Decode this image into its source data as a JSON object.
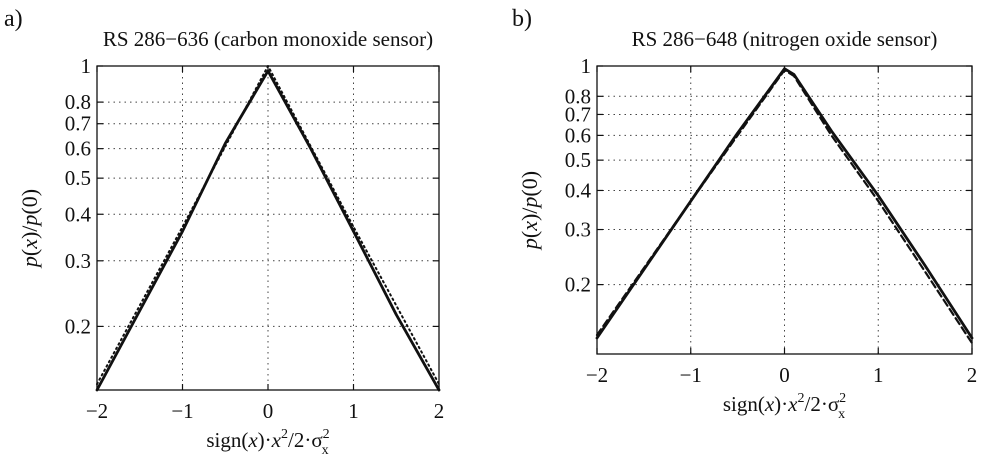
{
  "figure": {
    "panels": [
      {
        "letter": "a)"
      },
      {
        "letter": "b)"
      }
    ]
  },
  "chart_data": [
    {
      "type": "line",
      "title": "RS 286−636 (carbon monoxide sensor)",
      "xlabel_parts": [
        "sign(",
        "x",
        ")·",
        "x",
        "2",
        "/2·σ",
        "2",
        "x"
      ],
      "ylabel_parts": [
        "p",
        "(",
        "x",
        ")/",
        "p",
        "(0)"
      ],
      "xlim": [
        -2,
        2
      ],
      "ylim": [
        0.135,
        1.0
      ],
      "yscale": "log",
      "grid": true,
      "xticks": [
        -2,
        -1,
        0,
        1,
        2
      ],
      "xtick_labels": [
        "−2",
        "−1",
        "0",
        "1",
        "2"
      ],
      "yticks": [
        0.2,
        0.3,
        0.4,
        0.5,
        0.6,
        0.7,
        0.8,
        1
      ],
      "ytick_labels": [
        "0.2",
        "0.3",
        "0.4",
        "0.5",
        "0.6",
        "0.7",
        "0.8",
        "1"
      ],
      "series": [
        {
          "style": "solid",
          "x": [
            -2,
            -1,
            -0.5,
            0,
            0.5,
            1,
            1.5,
            2
          ],
          "y": [
            0.135,
            0.36,
            0.62,
            0.97,
            0.6,
            0.36,
            0.215,
            0.135
          ]
        },
        {
          "style": "dotted",
          "x": [
            -2,
            -1,
            0,
            1,
            2
          ],
          "y": [
            0.14,
            0.37,
            1.0,
            0.37,
            0.14
          ]
        }
      ]
    },
    {
      "type": "line",
      "title": "RS 286−648 (nitrogen oxide sensor)",
      "xlabel_parts": [
        "sign(",
        "x",
        ")·",
        "x",
        "2",
        "/2·σ",
        "2",
        "x"
      ],
      "ylabel_parts": [
        "p",
        "(",
        "x",
        ")/",
        "p",
        "(0)"
      ],
      "xlim": [
        -2,
        2
      ],
      "ylim": [
        0.12,
        1.0
      ],
      "yscale": "log",
      "grid": true,
      "xticks": [
        -2,
        -1,
        0,
        1,
        2
      ],
      "xtick_labels": [
        "−2",
        "−1",
        "0",
        "1",
        "2"
      ],
      "yticks": [
        0.2,
        0.3,
        0.4,
        0.5,
        0.6,
        0.7,
        0.8,
        1
      ],
      "ytick_labels": [
        "0.2",
        "0.3",
        "0.4",
        "0.5",
        "0.6",
        "0.7",
        "0.8",
        "1"
      ],
      "series": [
        {
          "style": "solid",
          "x": [
            -2,
            -1,
            -0.5,
            0,
            0.1,
            0.5,
            1,
            1.5,
            2
          ],
          "y": [
            0.135,
            0.37,
            0.61,
            0.98,
            0.94,
            0.62,
            0.385,
            0.23,
            0.135
          ]
        },
        {
          "style": "dashed",
          "x": [
            -2,
            -1,
            -0.5,
            0,
            0.1,
            0.5,
            1,
            1.5,
            2
          ],
          "y": [
            0.138,
            0.37,
            0.6,
            0.97,
            0.93,
            0.6,
            0.37,
            0.22,
            0.13
          ]
        }
      ]
    }
  ]
}
